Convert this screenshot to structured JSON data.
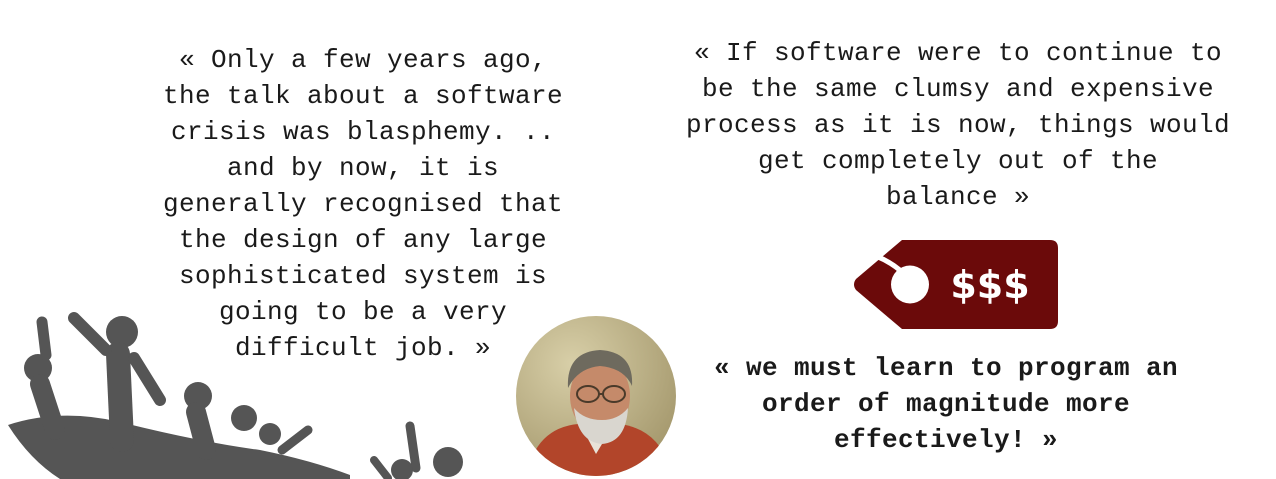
{
  "quotes": {
    "left": {
      "lines": [
        "« Only a few years ago,",
        "the talk about a software",
        "crisis was blasphemy. ..",
        "and by now, it is",
        "generally recognised that",
        "the design of any large",
        "sophisticated system is",
        "going to be a very",
        "difficult job. »"
      ]
    },
    "right": {
      "lines": [
        "« If software were to continue to",
        "be the same clumsy and expensive",
        "process as it is now, things would",
        "get completely out of the",
        "balance »"
      ]
    },
    "bottom": {
      "lines": [
        "« we must learn to program an",
        "order of magnitude more",
        "effectively! »"
      ]
    }
  },
  "price_tag": {
    "text": "$$$",
    "icon": "price-tag-icon",
    "color": "#6b0a0a"
  },
  "illustrations": {
    "crowd": {
      "icon": "drowning-crowd-icon",
      "color": "#555555"
    },
    "portrait": {
      "icon": "bearded-man-portrait"
    }
  }
}
